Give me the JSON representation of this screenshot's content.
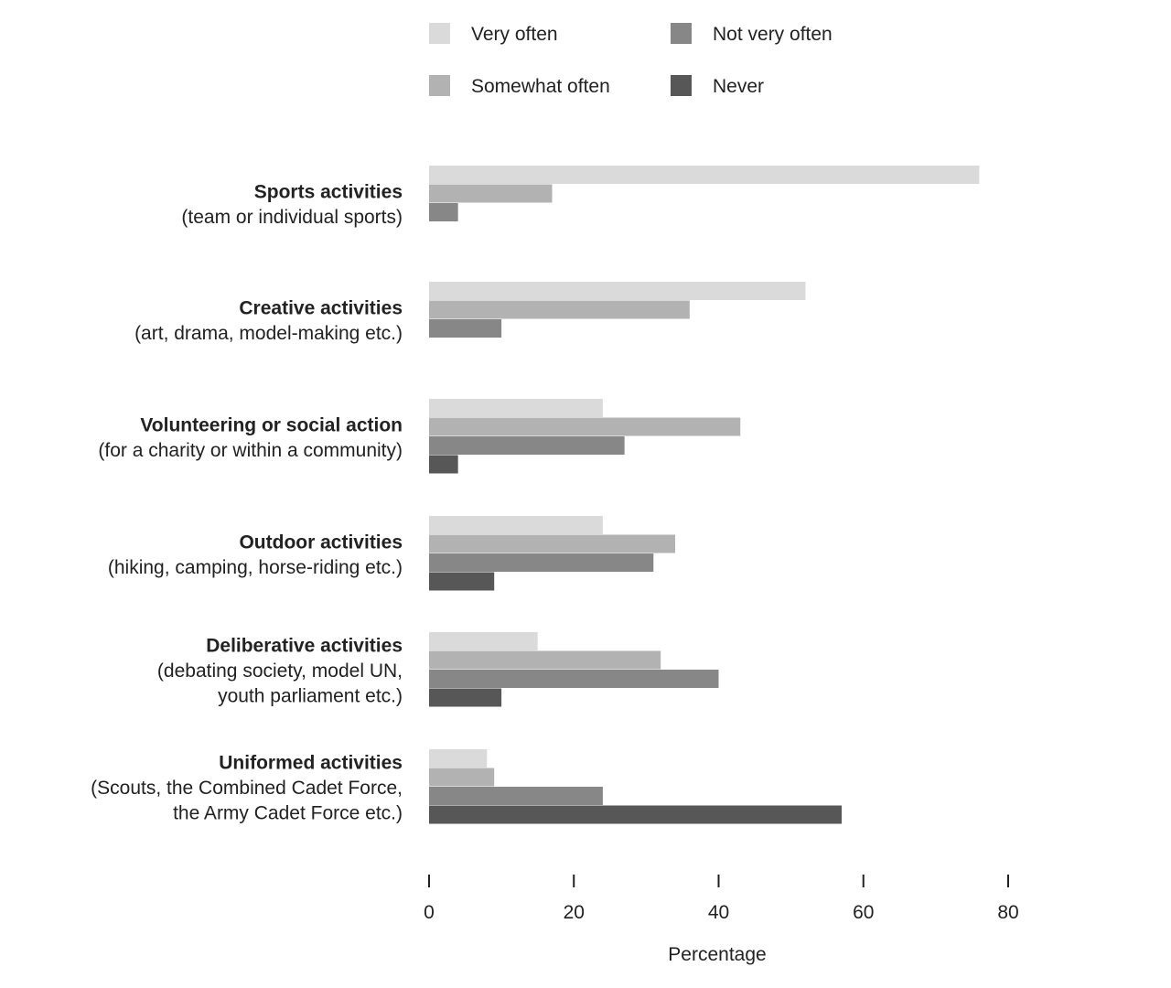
{
  "chart_data": {
    "type": "bar",
    "orientation": "horizontal",
    "xlabel": "Percentage",
    "xlim": [
      0,
      80
    ],
    "xticks": [
      "0",
      "20",
      "40",
      "60",
      "80"
    ],
    "grid": false,
    "legend_position": "top",
    "categories": [
      {
        "title": "Sports activities",
        "subtitle": [
          "(team or individual sports)"
        ]
      },
      {
        "title": "Creative activities",
        "subtitle": [
          "(art, drama, model-making etc.)"
        ]
      },
      {
        "title": "Volunteering or social action",
        "subtitle": [
          "(for a charity or within a community)"
        ]
      },
      {
        "title": "Outdoor activities",
        "subtitle": [
          "(hiking, camping, horse-riding etc.)"
        ]
      },
      {
        "title": "Deliberative activities",
        "subtitle": [
          "(debating society, model UN,",
          "youth parliament etc.)"
        ]
      },
      {
        "title": "Uniformed activities",
        "subtitle": [
          "(Scouts, the Combined Cadet Force,",
          "the Army Cadet Force etc.)"
        ]
      }
    ],
    "series": [
      {
        "name": "Very often",
        "color": "#dadada",
        "values": [
          76,
          52,
          24,
          24,
          15,
          8
        ]
      },
      {
        "name": "Somewhat often",
        "color": "#b2b2b2",
        "values": [
          17,
          36,
          43,
          34,
          32,
          9
        ]
      },
      {
        "name": "Not very often",
        "color": "#878787",
        "values": [
          4,
          10,
          27,
          31,
          40,
          24
        ]
      },
      {
        "name": "Never",
        "color": "#575757",
        "values": [
          0,
          0,
          4,
          9,
          10,
          57
        ]
      }
    ]
  }
}
